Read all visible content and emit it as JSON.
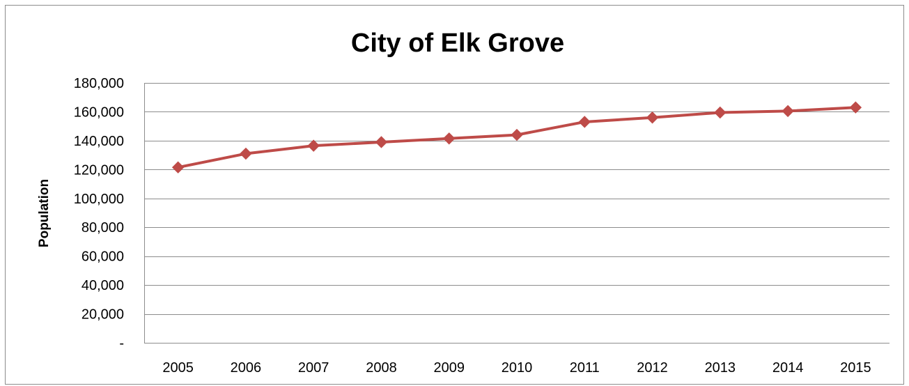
{
  "chart_data": {
    "type": "line",
    "title": "City of Elk Grove",
    "ylabel": "Population",
    "xlabel": "",
    "categories": [
      "2005",
      "2006",
      "2007",
      "2008",
      "2009",
      "2010",
      "2011",
      "2012",
      "2013",
      "2014",
      "2015"
    ],
    "series": [
      {
        "name": "",
        "values": [
          121500,
          131000,
          136500,
          139000,
          141500,
          144000,
          153000,
          156000,
          159500,
          160500,
          163000
        ],
        "color": "#be4b48",
        "marker": "diamond"
      }
    ],
    "ylim": [
      0,
      180000
    ],
    "y_ticks": [
      0,
      20000,
      40000,
      60000,
      80000,
      100000,
      120000,
      140000,
      160000,
      180000
    ],
    "y_tick_labels": [
      "-",
      "20,000",
      "40,000",
      "60,000",
      "80,000",
      "100,000",
      "120,000",
      "140,000",
      "160,000",
      "180,000"
    ],
    "grid": true,
    "legend": "none"
  }
}
